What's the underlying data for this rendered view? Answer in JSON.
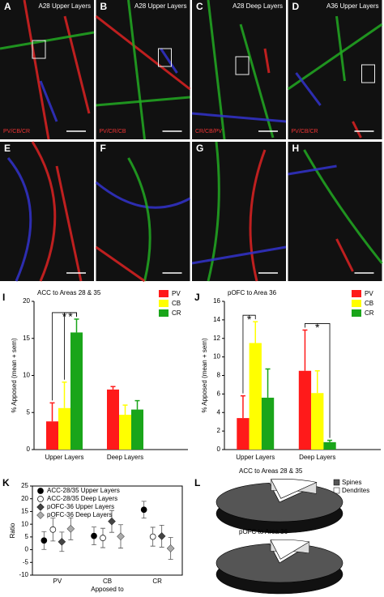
{
  "panels": [
    {
      "letter": "A",
      "title": "A28 Upper Layers",
      "stain": "PV/CB/CR"
    },
    {
      "letter": "B",
      "title": "A28 Upper Layers",
      "stain": "PV/CR/CB"
    },
    {
      "letter": "C",
      "title": "A28 Deep Layers",
      "stain": "CR/CB/PV"
    },
    {
      "letter": "D",
      "title": "A36 Upper Layers",
      "stain": "PV/CB/CR"
    },
    {
      "letter": "E"
    },
    {
      "letter": "F"
    },
    {
      "letter": "G"
    },
    {
      "letter": "H"
    }
  ],
  "chart_data": [
    {
      "type": "bar",
      "panel": "I",
      "title": "ACC to Areas 28 & 35",
      "y_label": "% Apposed (mean + sem)",
      "categories": [
        "Upper Layers",
        "Deep Layers"
      ],
      "series": [
        {
          "name": "PV",
          "color": "#ff1a1a",
          "values": [
            3.8,
            8.1
          ],
          "errors": [
            2.5,
            0.4
          ]
        },
        {
          "name": "CB",
          "color": "#ffff00",
          "values": [
            5.6,
            4.7
          ],
          "errors": [
            3.5,
            1.3
          ]
        },
        {
          "name": "CR",
          "color": "#1aa51a",
          "values": [
            15.8,
            5.4
          ],
          "errors": [
            1.8,
            1.2
          ]
        }
      ],
      "ylim": [
        0,
        20
      ],
      "yticks": [
        0,
        5,
        10,
        15,
        20
      ],
      "significance": [
        {
          "category": 0,
          "from": 0,
          "to": 2,
          "label": "*"
        },
        {
          "category": 0,
          "from": 1,
          "to": 2,
          "label": "*"
        }
      ]
    },
    {
      "type": "bar",
      "panel": "J",
      "title": "pOFC to Area 36",
      "y_label": "% Apposed (mean + sem)",
      "categories": [
        "Upper Layers",
        "Deep Layers"
      ],
      "series": [
        {
          "name": "PV",
          "color": "#ff1a1a",
          "values": [
            3.4,
            8.5
          ],
          "errors": [
            2.4,
            4.4
          ]
        },
        {
          "name": "CB",
          "color": "#ffff00",
          "values": [
            11.5,
            6.1
          ],
          "errors": [
            2.3,
            2.4
          ]
        },
        {
          "name": "CR",
          "color": "#1aa51a",
          "values": [
            5.6,
            0.8
          ],
          "errors": [
            3.1,
            0.2
          ]
        }
      ],
      "ylim": [
        0,
        16
      ],
      "yticks": [
        0,
        2,
        4,
        6,
        8,
        10,
        12,
        14,
        16
      ],
      "significance": [
        {
          "category": 0,
          "from": 0,
          "to": 1,
          "label": "*"
        },
        {
          "category": 1,
          "from": 0,
          "to": 2,
          "label": "*"
        }
      ]
    },
    {
      "type": "scatter",
      "panel": "K",
      "y_label": "Ratio",
      "x_label": "Apposed to",
      "categories": [
        "PV",
        "CB",
        "CR"
      ],
      "series": [
        {
          "name": "ACC-28/35 Upper Layers",
          "color": "#000000",
          "marker": "circle",
          "values": [
            3.6,
            5.4,
            15.7
          ],
          "errors": [
            3.5,
            3.5,
            3.3
          ]
        },
        {
          "name": "ACC-28/35 Deep Layers",
          "color": "#ffffff",
          "marker": "circle",
          "values": [
            7.9,
            4.6,
            5.1
          ],
          "errors": [
            4.5,
            3.8,
            3.7
          ]
        },
        {
          "name": "pOFC-36 Upper Layers",
          "color": "#444444",
          "marker": "diamond",
          "values": [
            3.1,
            11.1,
            5.3
          ],
          "errors": [
            3.8,
            4.3,
            4.3
          ]
        },
        {
          "name": "pOFC-36 Deep Layers",
          "color": "#aaaaaa",
          "marker": "diamond",
          "values": [
            8.2,
            5.2,
            0.5
          ],
          "errors": [
            4.3,
            4.6,
            4.3
          ]
        }
      ],
      "ylim": [
        -10,
        25
      ],
      "yticks": [
        -10,
        -5,
        0,
        5,
        10,
        15,
        20,
        25
      ]
    },
    {
      "type": "pie",
      "panel": "L",
      "title": "ACC to Areas 28 & 35",
      "categories": [
        "Spines",
        "Dendrites"
      ],
      "colors": [
        "#555555",
        "#ffffff"
      ],
      "values": [
        88,
        12
      ]
    },
    {
      "type": "pie",
      "title": "pOFC to Area 36",
      "values": [
        90,
        10
      ]
    }
  ]
}
